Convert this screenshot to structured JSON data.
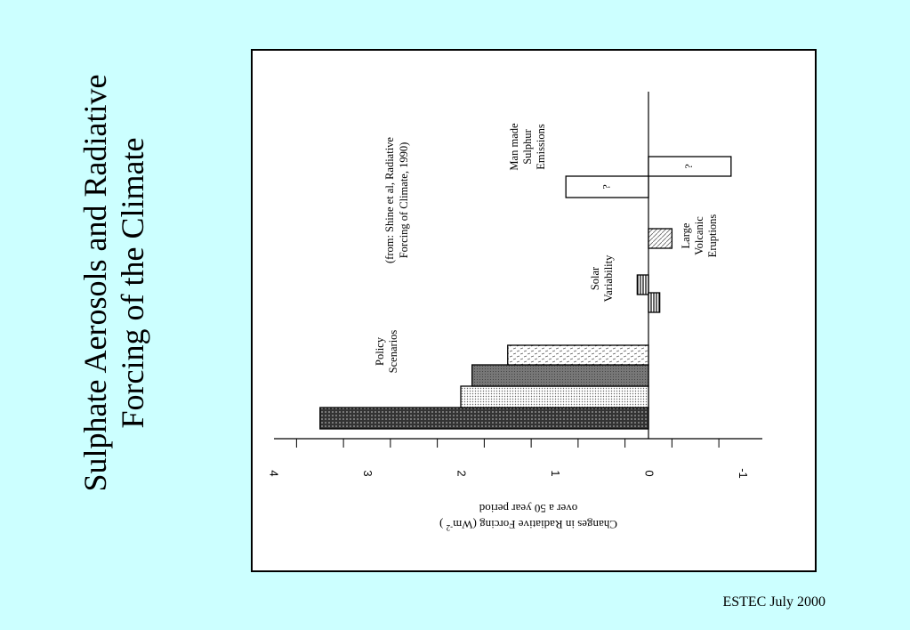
{
  "slide": {
    "title_line1": "Sulphate Aerosols and Radiative",
    "title_line2": "Forcing of the Climate",
    "footer": "ESTEC July 2000"
  },
  "chart_data": {
    "type": "bar",
    "orientation": "rotated -90deg (values increase leftward in page, bars grow from the 0 line)",
    "ylabel_line1": "Changes in Radiative Forcing (Wm",
    "ylabel_sup": "-2",
    "ylabel_line1_end": " )",
    "ylabel_line2": "over a 50 year period",
    "ylim": [
      -1,
      4
    ],
    "ticks": [
      "4",
      "3",
      "2",
      "1",
      "0",
      "-1"
    ],
    "tick_values": [
      4,
      3,
      2,
      1,
      0,
      -1
    ],
    "source_note": [
      "(from: Shine et al, Radiative",
      "Forcing of Climate, 1990)"
    ],
    "group_labels": {
      "policy": [
        "Policy",
        "Scenarios"
      ],
      "solar": [
        "Solar",
        "Variability"
      ],
      "volcanic": [
        "Large",
        "Volcanic",
        "Eruptions"
      ],
      "sulphur": [
        "Man made",
        "Sulphur",
        "Emissions"
      ]
    },
    "bars": [
      {
        "group": "policy",
        "value": 3.5,
        "pattern": "dark-dots"
      },
      {
        "group": "policy",
        "value": 2.0,
        "pattern": "light-dots"
      },
      {
        "group": "policy",
        "value": 1.88,
        "pattern": "grey"
      },
      {
        "group": "policy",
        "value": 1.5,
        "pattern": "dashes"
      },
      {
        "group": "solar",
        "value": 0.12,
        "pattern": "vlines"
      },
      {
        "group": "solar",
        "value": -0.12,
        "pattern": "vlines"
      },
      {
        "group": "volcanic",
        "value": -0.25,
        "pattern": "diag"
      },
      {
        "group": "sulphur",
        "value": 0.88,
        "pattern": "none",
        "marker": "?"
      },
      {
        "group": "sulphur",
        "value": -0.88,
        "pattern": "none",
        "marker": "?"
      }
    ]
  }
}
